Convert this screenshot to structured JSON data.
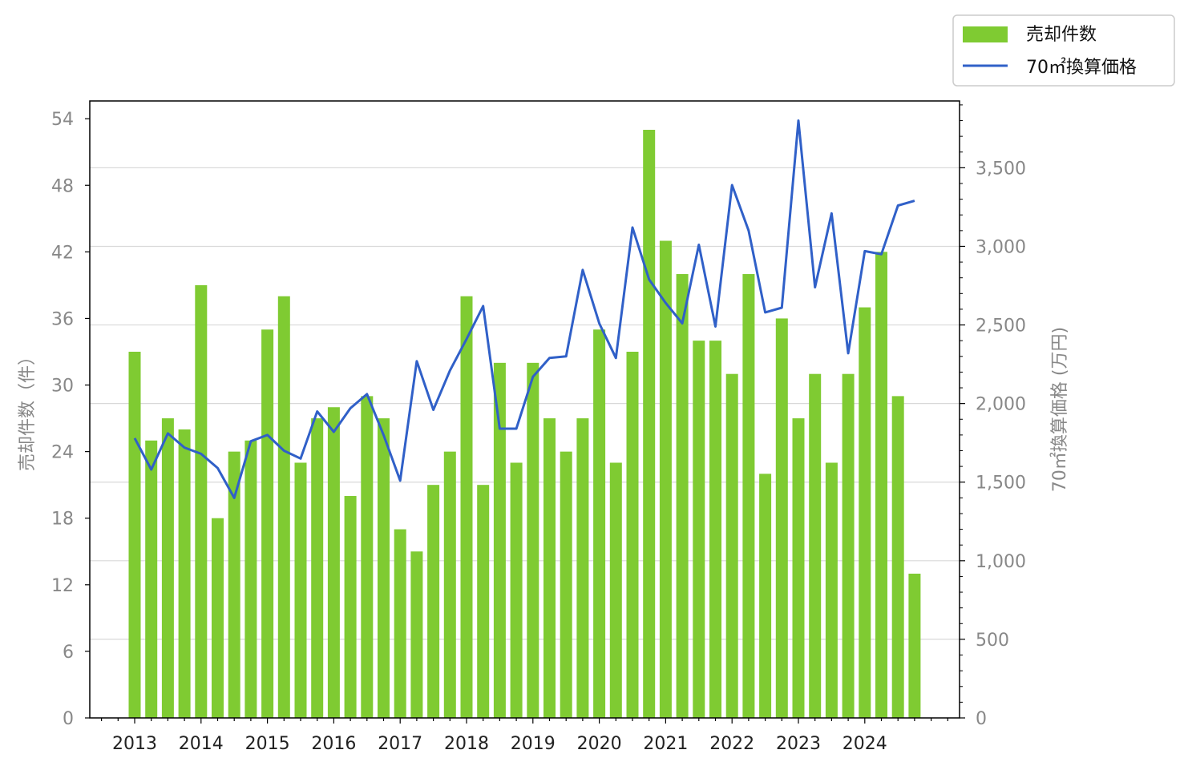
{
  "chart_data": {
    "type": "bar+line",
    "x": [
      "2013-Q1",
      "2013-Q2",
      "2013-Q3",
      "2013-Q4",
      "2014-Q1",
      "2014-Q2",
      "2014-Q3",
      "2014-Q4",
      "2015-Q1",
      "2015-Q2",
      "2015-Q3",
      "2015-Q4",
      "2016-Q1",
      "2016-Q2",
      "2016-Q3",
      "2016-Q4",
      "2017-Q1",
      "2017-Q2",
      "2017-Q3",
      "2017-Q4",
      "2018-Q1",
      "2018-Q2",
      "2018-Q3",
      "2018-Q4",
      "2019-Q1",
      "2019-Q2",
      "2019-Q3",
      "2019-Q4",
      "2020-Q1",
      "2020-Q2",
      "2020-Q3",
      "2020-Q4",
      "2021-Q1",
      "2021-Q2",
      "2021-Q3",
      "2021-Q4",
      "2022-Q1",
      "2022-Q2",
      "2022-Q3",
      "2022-Q4",
      "2023-Q1",
      "2023-Q2",
      "2023-Q3",
      "2023-Q4",
      "2024-Q1",
      "2024-Q2",
      "2024-Q3",
      "2024-Q4"
    ],
    "x_tick_labels": [
      "2013",
      "2014",
      "2015",
      "2016",
      "2017",
      "2018",
      "2019",
      "2020",
      "2021",
      "2022",
      "2023",
      "2024"
    ],
    "series": [
      {
        "name": "売却件数",
        "type": "bar",
        "axis": "left",
        "color": "#7fcb32",
        "values": [
          33,
          25,
          27,
          26,
          39,
          18,
          24,
          25,
          35,
          38,
          23,
          27,
          28,
          20,
          29,
          27,
          17,
          15,
          21,
          24,
          38,
          21,
          32,
          23,
          32,
          27,
          24,
          27,
          35,
          23,
          33,
          53,
          43,
          40,
          34,
          34,
          31,
          40,
          22,
          36,
          27,
          31,
          23,
          31,
          37,
          42,
          29,
          13
        ]
      },
      {
        "name": "70㎡換算価格",
        "type": "line",
        "axis": "right",
        "color": "#3060c8",
        "values": [
          1780,
          1580,
          1810,
          1720,
          1680,
          1590,
          1400,
          1760,
          1800,
          1700,
          1650,
          1950,
          1820,
          1970,
          2060,
          1800,
          1510,
          2270,
          1960,
          2210,
          2410,
          2620,
          1840,
          1840,
          2170,
          2290,
          2300,
          2850,
          2510,
          2290,
          3120,
          2790,
          2640,
          2510,
          3010,
          2490,
          3390,
          3100,
          2580,
          2610,
          3800,
          2740,
          3210,
          2320,
          2970,
          2950,
          3260,
          3290
        ]
      }
    ],
    "y_left": {
      "label": "売却件数（件）",
      "ticks": [
        0,
        6,
        12,
        18,
        24,
        30,
        36,
        42,
        48,
        54
      ],
      "range": [
        0,
        55.6
      ]
    },
    "y_right": {
      "label": "70㎡換算価格 (万円)",
      "ticks": [
        0,
        500,
        1000,
        1500,
        2000,
        2500,
        3000,
        3500
      ],
      "tick_labels": [
        "0",
        "500",
        "1,000",
        "1,500",
        "2,000",
        "2,500",
        "3,000",
        "3,500"
      ],
      "range": [
        0,
        3925
      ]
    },
    "grid": "horizontal (right axis)",
    "legend_position": "top-right outside"
  }
}
